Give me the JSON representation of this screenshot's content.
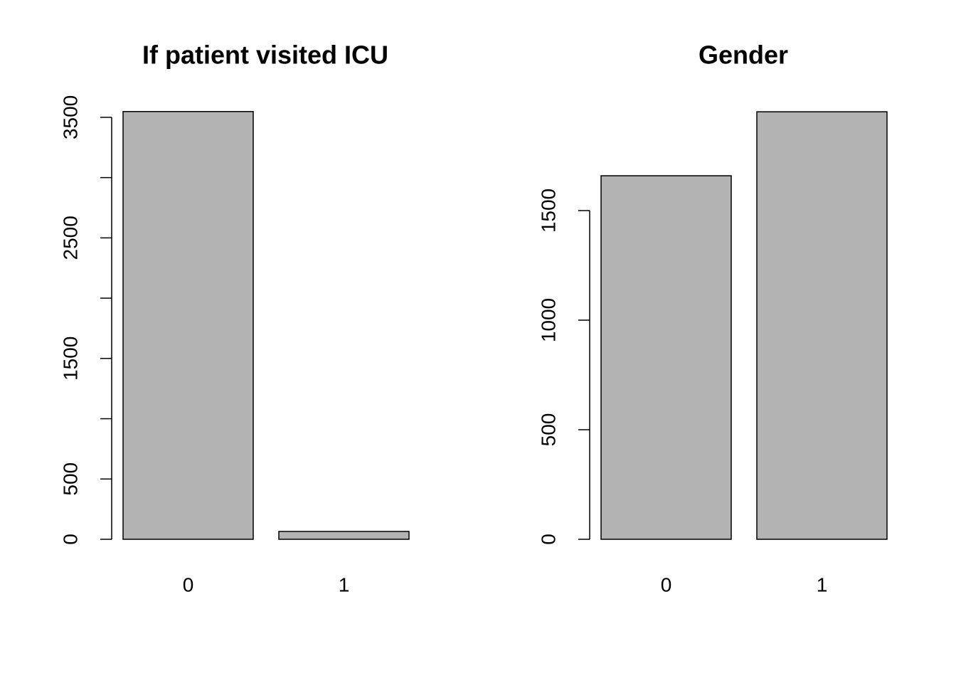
{
  "chart_data": [
    {
      "type": "bar",
      "title": "If patient visited ICU",
      "categories": [
        "0",
        "1"
      ],
      "values": [
        3548,
        65
      ],
      "color": "#b3b3b3",
      "ylim": [
        0,
        3700
      ],
      "yticks": [
        0,
        500,
        1500,
        2500,
        3500
      ],
      "minor_yticks": [
        1000,
        2000,
        3000
      ]
    },
    {
      "type": "bar",
      "title": "Gender",
      "categories": [
        "0",
        "1"
      ],
      "values": [
        1659,
        1951
      ],
      "color": "#b3b3b3",
      "ylim": [
        0,
        2000
      ],
      "yticks": [
        0,
        500,
        1000,
        1500
      ],
      "minor_yticks": []
    }
  ]
}
